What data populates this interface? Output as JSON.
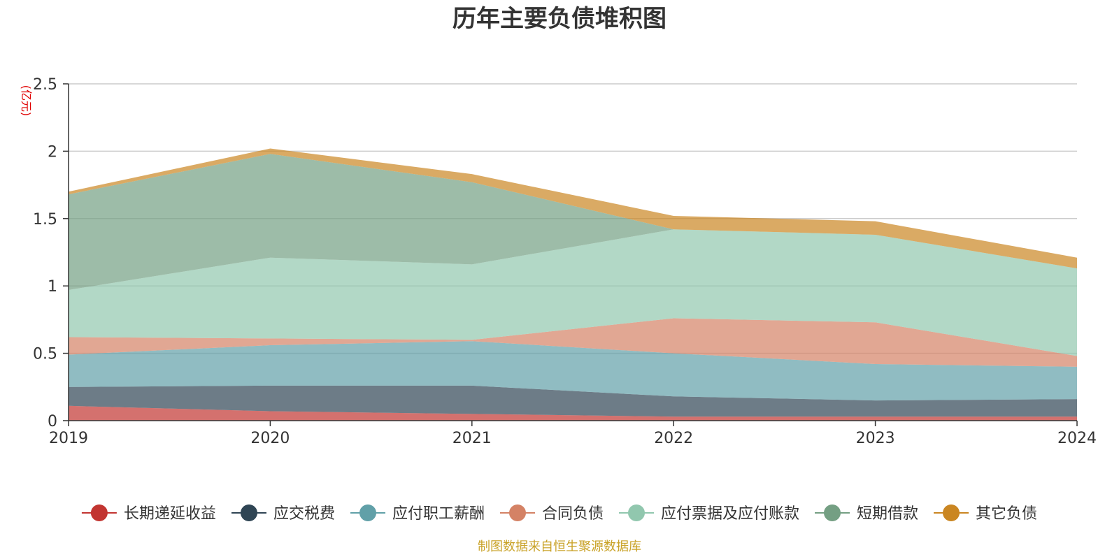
{
  "chart_data": {
    "type": "area",
    "stacked": true,
    "title": "历年主要负债堆积图",
    "y_unit": "(亿元)",
    "x": [
      "2019",
      "2020",
      "2021",
      "2022",
      "2023",
      "2024"
    ],
    "ylim": [
      0,
      2.5
    ],
    "y_ticks": [
      "0",
      "0.5",
      "1",
      "1.5",
      "2",
      "2.5"
    ],
    "grid": true,
    "legend_position": "bottom",
    "series": [
      {
        "name": "长期递延收益",
        "color": "#c23531",
        "values": [
          0.11,
          0.07,
          0.05,
          0.03,
          0.03,
          0.03
        ]
      },
      {
        "name": "应交税费",
        "color": "#2f4554",
        "values": [
          0.14,
          0.19,
          0.21,
          0.15,
          0.12,
          0.13
        ]
      },
      {
        "name": "应付职工薪酬",
        "color": "#61a0a8",
        "values": [
          0.24,
          0.3,
          0.33,
          0.32,
          0.27,
          0.24
        ]
      },
      {
        "name": "合同负债",
        "color": "#d48265",
        "values": [
          0.13,
          0.05,
          0.01,
          0.26,
          0.31,
          0.08
        ]
      },
      {
        "name": "应付票据及应付账款",
        "color": "#91c7ae",
        "values": [
          0.35,
          0.6,
          0.56,
          0.66,
          0.65,
          0.65
        ]
      },
      {
        "name": "短期借款",
        "color": "#749f83",
        "values": [
          0.71,
          0.77,
          0.61,
          0.0,
          0.0,
          0.0
        ]
      },
      {
        "name": "其它负债",
        "color": "#ca8622",
        "values": [
          0.02,
          0.04,
          0.06,
          0.1,
          0.1,
          0.08
        ]
      }
    ],
    "footer_note": "制图数据来自恒生聚源数据库"
  }
}
